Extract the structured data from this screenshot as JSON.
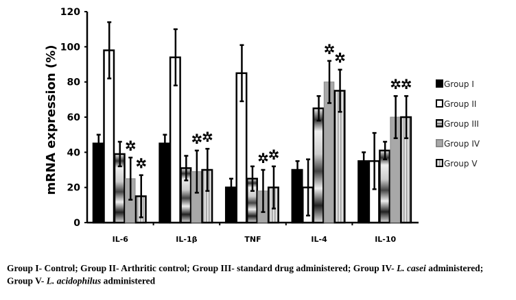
{
  "chart_data": {
    "type": "bar",
    "title": "",
    "xlabel": "",
    "ylabel": "mRNA expression  (%)",
    "ylim": [
      0,
      120
    ],
    "yticks": [
      0,
      20,
      40,
      60,
      80,
      100,
      120
    ],
    "ytick_labels": [
      "0",
      "20",
      "40",
      "60",
      "80",
      "100",
      "120"
    ],
    "categories": [
      "IL-6",
      "IL-1β",
      "TNF",
      "IL-4",
      "IL-10"
    ],
    "legend_position": "right",
    "series": [
      {
        "name": "Group I",
        "values": [
          45,
          45,
          20,
          30,
          35
        ],
        "errors": [
          5,
          5,
          5,
          5,
          5
        ],
        "significant": [
          false,
          false,
          false,
          false,
          false
        ]
      },
      {
        "name": "Group II",
        "values": [
          98,
          94,
          85,
          20,
          35
        ],
        "errors": [
          16,
          16,
          16,
          16,
          16
        ],
        "significant": [
          false,
          false,
          false,
          false,
          false
        ]
      },
      {
        "name": "Group III",
        "values": [
          39,
          31,
          25,
          65,
          41
        ],
        "errors": [
          7,
          7,
          7,
          7,
          5
        ],
        "significant": [
          false,
          false,
          false,
          false,
          false
        ]
      },
      {
        "name": "Group IV",
        "values": [
          25,
          29,
          18,
          80,
          60
        ],
        "errors": [
          12,
          12,
          12,
          12,
          12
        ],
        "significant": [
          true,
          true,
          true,
          true,
          true
        ]
      },
      {
        "name": "Group V",
        "values": [
          15,
          30,
          20,
          75,
          60
        ],
        "errors": [
          12,
          12,
          12,
          12,
          12
        ],
        "significant": [
          true,
          true,
          true,
          true,
          true
        ]
      }
    ],
    "colors": {
      "group1": "#000000",
      "group2": "#ffffff",
      "group3": "#cccccc",
      "group4": "#a8a8a8",
      "group5": "#d8d8d8"
    }
  },
  "caption": {
    "line1_a": "Group I- Control; Group II- Arthritic control; Group III- standard drug administered; Group IV- ",
    "line1_i": "L. casei",
    "line1_b": " administered;",
    "line2_a": "Group V- ",
    "line2_i": "L. acidophilus",
    "line2_b": " administered"
  }
}
